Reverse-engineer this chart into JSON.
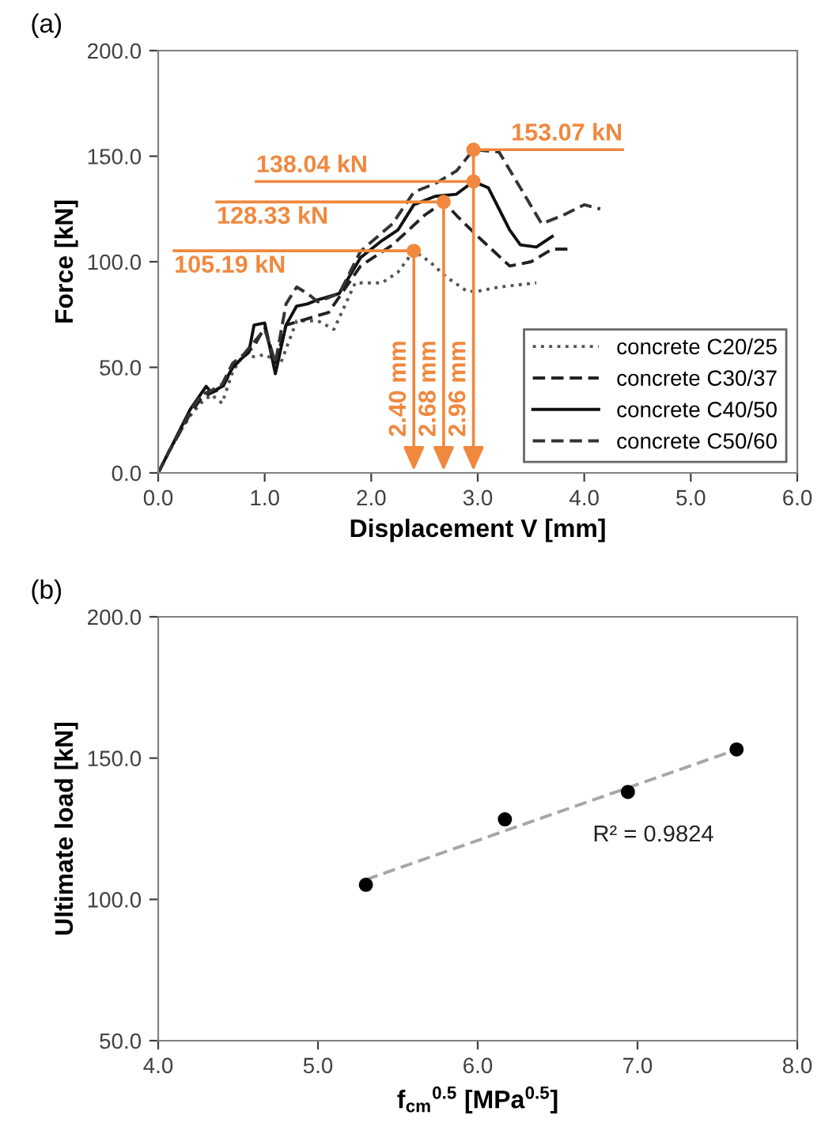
{
  "chart_data": [
    {
      "type": "line",
      "title": "(a)",
      "xlabel": "Displacement V [mm]",
      "ylabel": "Force [kN]",
      "xlim": [
        0,
        6
      ],
      "ylim": [
        0,
        200
      ],
      "xticks": [
        {
          "value": 0,
          "label": "0.0"
        },
        {
          "value": 1,
          "label": "1.0"
        },
        {
          "value": 2,
          "label": "2.0"
        },
        {
          "value": 3,
          "label": "3.0"
        },
        {
          "value": 4,
          "label": "4.0"
        },
        {
          "value": 5,
          "label": "5.0"
        },
        {
          "value": 6,
          "label": "6.0"
        }
      ],
      "yticks": [
        {
          "value": 0,
          "label": "0.0"
        },
        {
          "value": 50,
          "label": "50.0"
        },
        {
          "value": 100,
          "label": "100.0"
        },
        {
          "value": 150,
          "label": "150.0"
        },
        {
          "value": 200,
          "label": "200.0"
        }
      ],
      "grid": false,
      "legend": "bottom right",
      "series": [
        {
          "name": "concrete C20/25",
          "color": "#555555",
          "line_style": "dotted",
          "x": [
            0,
            0.1,
            0.2,
            0.3,
            0.4,
            0.5,
            0.6,
            0.7,
            0.8,
            0.9,
            1.0,
            1.15,
            1.3,
            1.5,
            1.65,
            1.85,
            2.1,
            2.25,
            2.4,
            2.55,
            2.7,
            2.9,
            3.0,
            3.2,
            3.55
          ],
          "values": [
            0,
            10,
            19,
            27,
            33,
            37,
            33,
            48,
            56,
            55,
            56,
            52,
            72,
            72,
            68,
            90,
            90,
            95,
            105.19,
            100,
            93,
            86,
            86,
            88,
            90
          ]
        },
        {
          "name": "concrete C30/37",
          "color": "#222222",
          "line_style": "dashed",
          "x": [
            0,
            0.1,
            0.2,
            0.3,
            0.4,
            0.5,
            0.6,
            0.7,
            0.8,
            0.9,
            1.0,
            1.1,
            1.2,
            1.4,
            1.6,
            1.9,
            2.2,
            2.5,
            2.68,
            2.8,
            3.0,
            3.3,
            3.5,
            3.7,
            3.85
          ],
          "values": [
            0,
            10,
            19,
            28,
            35,
            38,
            40,
            50,
            55,
            60,
            69,
            52,
            70,
            73,
            76,
            98,
            108,
            122,
            128.33,
            122,
            112,
            98,
            100,
            106,
            106
          ]
        },
        {
          "name": "concrete C40/50",
          "color": "#111111",
          "line_style": "solid",
          "x": [
            0,
            0.1,
            0.2,
            0.3,
            0.45,
            0.5,
            0.6,
            0.7,
            0.8,
            0.85,
            0.9,
            1.0,
            1.1,
            1.2,
            1.3,
            1.4,
            1.5,
            1.7,
            1.9,
            2.1,
            2.25,
            2.4,
            2.6,
            2.8,
            2.96,
            3.1,
            3.2,
            3.3,
            3.4,
            3.55,
            3.7
          ],
          "values": [
            0,
            10,
            20,
            30,
            41,
            38,
            41,
            50,
            55,
            57,
            70,
            71,
            47,
            70,
            79,
            80,
            82,
            85,
            102,
            110,
            115,
            127,
            131,
            132,
            138.04,
            135,
            125,
            115,
            108,
            107,
            112
          ]
        },
        {
          "name": "concrete C50/60",
          "color": "#333333",
          "line_style": "dashed",
          "x": [
            0,
            0.1,
            0.2,
            0.3,
            0.4,
            0.5,
            0.6,
            0.7,
            0.8,
            0.9,
            1.0,
            1.1,
            1.2,
            1.3,
            1.4,
            1.5,
            1.7,
            1.9,
            2.2,
            2.4,
            2.6,
            2.8,
            2.96,
            3.2,
            3.4,
            3.6,
            3.8,
            4.0,
            4.15
          ],
          "values": [
            0,
            10,
            19,
            29,
            37,
            39,
            42,
            52,
            56,
            62,
            68,
            52,
            80,
            88,
            85,
            81,
            85,
            105,
            118,
            133,
            137,
            143,
            153.07,
            152,
            135,
            118,
            122,
            127,
            125
          ]
        },
        {
          "type": "scatter",
          "color": "#f0883e",
          "marker": "circle",
          "x": [
            2.4,
            2.68,
            2.96,
            2.96
          ],
          "values": [
            105.19,
            128.33,
            138.04,
            153.07
          ]
        }
      ],
      "annotations": [
        {
          "text": "105.19 kN",
          "x": 2.4,
          "y": 105.19
        },
        {
          "text": "128.33 kN",
          "x": 2.68,
          "y": 128.33
        },
        {
          "text": "138.04 kN",
          "x": 2.96,
          "y": 138.04
        },
        {
          "text": "153.07 kN",
          "x": 2.96,
          "y": 153.07
        },
        "2.40 mm",
        "2.68 mm",
        "2.96 mm"
      ]
    },
    {
      "type": "scatter",
      "title": "(b)",
      "xlabel": "f$_{cm}$$^{0.5}$ [MPa$^{0.5}$]",
      "ylabel": "Ultimate load [kN]",
      "xlim": [
        4,
        8
      ],
      "ylim": [
        50,
        200
      ],
      "xticks": [
        {
          "value": 4,
          "label": "4.0"
        },
        {
          "value": 5,
          "label": "5.0"
        },
        {
          "value": 6,
          "label": "6.0"
        },
        {
          "value": 7,
          "label": "7.0"
        },
        {
          "value": 8,
          "label": "8.0"
        }
      ],
      "yticks": [
        {
          "value": 50,
          "label": "50.0"
        },
        {
          "value": 100,
          "label": "100.0"
        },
        {
          "value": 150,
          "label": "150.0"
        },
        {
          "value": 200,
          "label": "200.0"
        }
      ],
      "grid": false,
      "legend": false,
      "series": [
        {
          "type": "line",
          "color": "#a6a6a6",
          "line_style": "dashed",
          "x": [
            5.3,
            7.62
          ],
          "values": [
            107,
            153
          ]
        },
        {
          "color": "#000000",
          "marker": "circle",
          "x": [
            5.3,
            6.17,
            6.94,
            7.62
          ],
          "values": [
            105.19,
            128.33,
            138.04,
            153.07
          ]
        }
      ],
      "annotations": [
        "R² = 0.9824"
      ]
    }
  ]
}
